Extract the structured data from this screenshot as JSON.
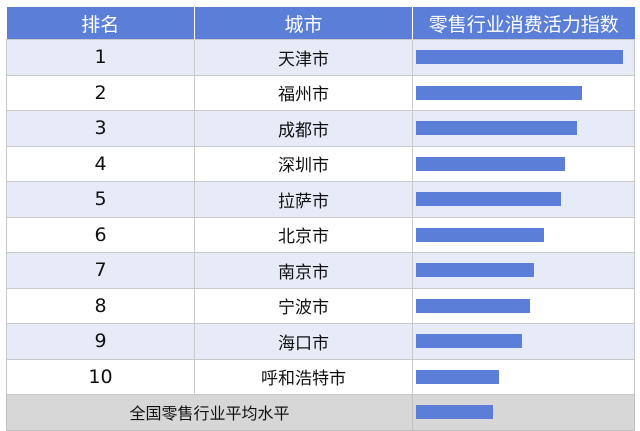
{
  "table": {
    "headers": [
      "排名",
      "城市",
      "零售行业消费活力指数"
    ]
  },
  "chart_data": {
    "type": "bar",
    "orientation": "horizontal",
    "value_scale_max": 100,
    "rows": [
      {
        "rank": "1",
        "city": "天津市",
        "value": 100
      },
      {
        "rank": "2",
        "city": "福州市",
        "value": 80
      },
      {
        "rank": "3",
        "city": "成都市",
        "value": 78
      },
      {
        "rank": "4",
        "city": "深圳市",
        "value": 72
      },
      {
        "rank": "5",
        "city": "拉萨市",
        "value": 70
      },
      {
        "rank": "6",
        "city": "北京市",
        "value": 62
      },
      {
        "rank": "7",
        "city": "南京市",
        "value": 57
      },
      {
        "rank": "8",
        "city": "宁波市",
        "value": 55
      },
      {
        "rank": "9",
        "city": "海口市",
        "value": 51
      },
      {
        "rank": "10",
        "city": "呼和浩特市",
        "value": 40
      }
    ],
    "average": {
      "label": "全国零售行业平均水平",
      "value": 37
    },
    "bar_color": "#5b7fd9",
    "header_color": "#5b7fd9"
  }
}
